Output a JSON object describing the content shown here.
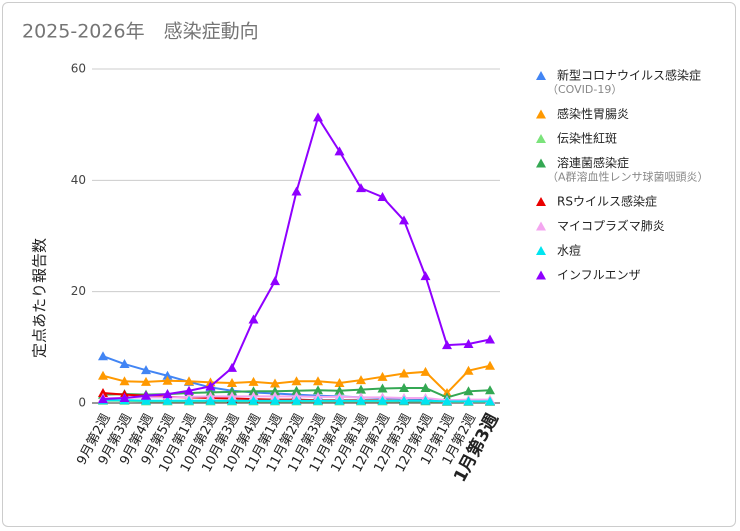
{
  "chart_data": {
    "type": "line",
    "title": "2025-2026年　感染症動向",
    "y_label": "定点あたり報告数",
    "categories": [
      "9月第2週",
      "9月第3週",
      "9月第4週",
      "9月第5週",
      "10月第1週",
      "10月第2週",
      "10月第3週",
      "10月第4週",
      "11月第1週",
      "11月第2週",
      "11月第3週",
      "11月第4週",
      "12月第1週",
      "12月第2週",
      "12月第3週",
      "12月第4週",
      "1月第1週",
      "1月第2週",
      "1月第3週"
    ],
    "highlight_color": "#e06666",
    "ylim": [
      0,
      60
    ],
    "yticks": [
      0,
      20,
      40,
      60
    ],
    "grid": true,
    "legend": "right",
    "series": [
      {
        "name": "新型コロナウイルス感染症",
        "subtitle": "（COVID-19）",
        "color": "#4285f4",
        "values": [
          8.4,
          7.0,
          5.9,
          4.9,
          3.8,
          2.8,
          2.2,
          1.9,
          1.7,
          1.5,
          1.3,
          1.2,
          1.0,
          0.9,
          0.8,
          0.7,
          0.5,
          0.5,
          0.4
        ]
      },
      {
        "name": "感染性胃腸炎",
        "color": "#ff9900",
        "values": [
          4.9,
          3.9,
          3.8,
          4.0,
          3.9,
          3.7,
          3.6,
          3.8,
          3.5,
          3.9,
          3.9,
          3.6,
          4.1,
          4.7,
          5.3,
          5.6,
          1.8,
          5.8,
          6.7
        ]
      },
      {
        "name": "伝染性紅斑",
        "color": "#7be37b",
        "values": [
          0.4,
          0.4,
          0.3,
          0.3,
          0.3,
          0.3,
          0.3,
          0.3,
          0.3,
          0.3,
          0.3,
          0.3,
          0.3,
          0.3,
          0.3,
          0.3,
          0.2,
          0.2,
          0.2
        ]
      },
      {
        "name": "溶連菌感染症",
        "subtitle": "（A群溶血性レンサ球菌咽頭炎）",
        "color": "#34a853",
        "values": [
          1.5,
          1.6,
          1.5,
          1.6,
          1.8,
          1.9,
          2.0,
          2.1,
          2.1,
          2.2,
          2.3,
          2.2,
          2.4,
          2.6,
          2.7,
          2.7,
          1.0,
          2.1,
          2.3
        ]
      },
      {
        "name": "RSウイルス感染症",
        "color": "#ea0000",
        "values": [
          1.8,
          1.5,
          1.3,
          1.1,
          1.0,
          0.9,
          0.8,
          0.7,
          0.6,
          0.6,
          0.5,
          0.5,
          0.5,
          0.5,
          0.4,
          0.4,
          0.3,
          0.3,
          0.3
        ]
      },
      {
        "name": "マイコプラズマ肺炎",
        "color": "#f4a6f0",
        "values": [
          0.9,
          0.9,
          1.0,
          1.0,
          1.1,
          1.2,
          1.2,
          1.2,
          1.2,
          1.2,
          1.1,
          1.1,
          1.0,
          1.0,
          0.9,
          0.9,
          0.5,
          0.6,
          0.6
        ]
      },
      {
        "name": "水痘",
        "color": "#00e5f0",
        "values": [
          0.5,
          0.5,
          0.4,
          0.4,
          0.4,
          0.4,
          0.4,
          0.4,
          0.4,
          0.4,
          0.4,
          0.4,
          0.4,
          0.4,
          0.4,
          0.4,
          0.3,
          0.3,
          0.3
        ]
      },
      {
        "name": "インフルエンザ",
        "color": "#8f00ff",
        "values": [
          0.7,
          0.9,
          1.3,
          1.6,
          2.2,
          3.0,
          6.3,
          15.0,
          21.9,
          38.0,
          51.3,
          45.2,
          38.6,
          37.0,
          32.8,
          22.8,
          10.4,
          10.6,
          11.4
        ]
      }
    ]
  }
}
